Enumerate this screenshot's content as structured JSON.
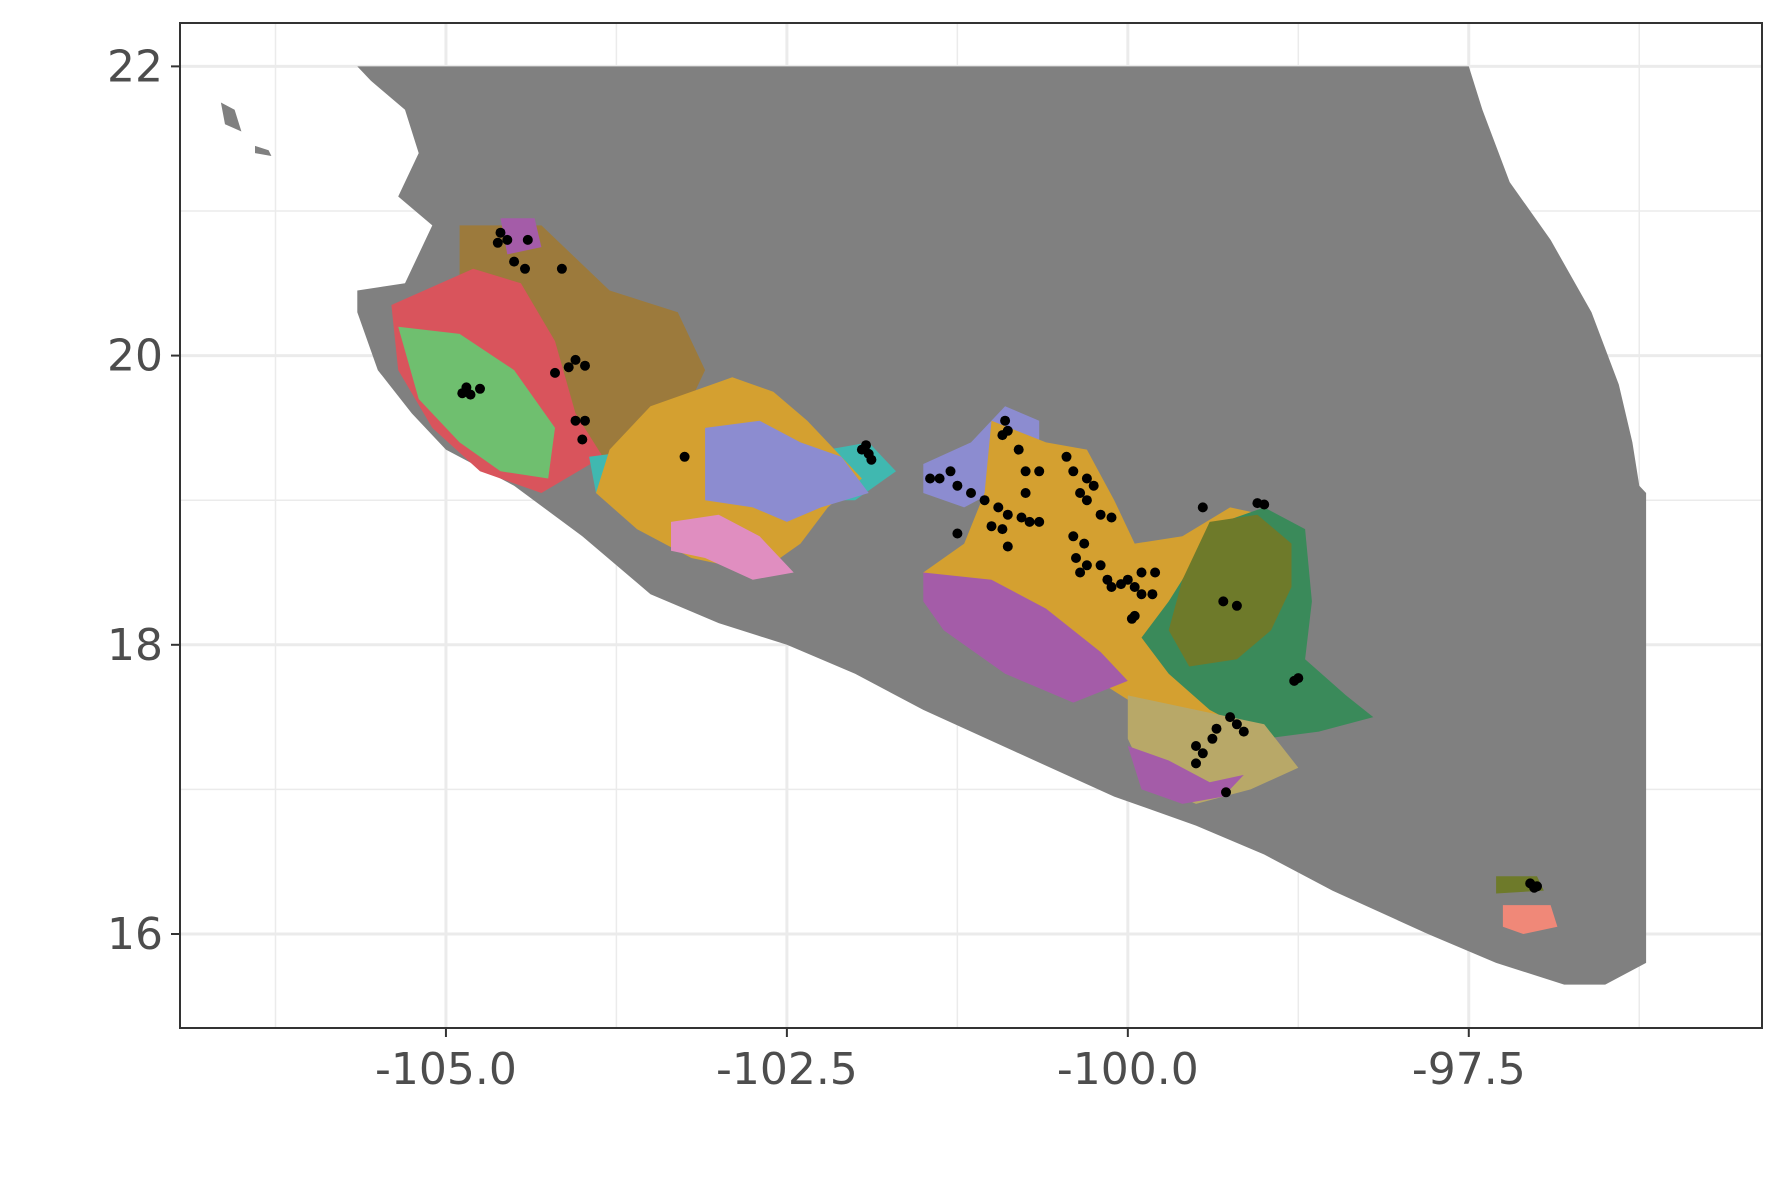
{
  "chart_data": {
    "type": "map",
    "title": "",
    "xlabel": "",
    "ylabel": "",
    "xlim": [
      -106.95,
      -95.35
    ],
    "ylim": [
      15.35,
      22.3
    ],
    "grid": true,
    "x_ticks": [
      {
        "value": -105.0,
        "label": "-105.0"
      },
      {
        "value": -102.5,
        "label": "-102.5"
      },
      {
        "value": -100.0,
        "label": "-100.0"
      },
      {
        "value": -97.5,
        "label": "-97.5"
      }
    ],
    "y_ticks": [
      {
        "value": 16,
        "label": "16"
      },
      {
        "value": 18,
        "label": "18"
      },
      {
        "value": 20,
        "label": "20"
      },
      {
        "value": 22,
        "label": "22"
      }
    ],
    "x_minor": [
      -106.25,
      -103.75,
      -101.25,
      -98.75,
      -96.25
    ],
    "y_minor": [
      17,
      19,
      21
    ],
    "colors": {
      "land": "#808080",
      "points": "#000000",
      "panel_border": "#333333",
      "grid": "#ebebeb",
      "regions": [
        "#d9545c",
        "#6fbf6f",
        "#9c7a3c",
        "#d4a030",
        "#8c8cd0",
        "#e08ec0",
        "#a45ca8",
        "#3a8a5a",
        "#6e7a2a",
        "#b8a868",
        "#f08878",
        "#40b8b0"
      ]
    },
    "land_polygon": [
      [
        -105.65,
        22.0
      ],
      [
        -97.5,
        22.0
      ],
      [
        -97.4,
        21.7
      ],
      [
        -97.2,
        21.2
      ],
      [
        -96.9,
        20.8
      ],
      [
        -96.6,
        20.3
      ],
      [
        -96.4,
        19.8
      ],
      [
        -96.3,
        19.4
      ],
      [
        -96.25,
        19.1
      ],
      [
        -96.2,
        19.05
      ],
      [
        -96.2,
        15.8
      ],
      [
        -96.5,
        15.65
      ],
      [
        -96.8,
        15.65
      ],
      [
        -97.3,
        15.8
      ],
      [
        -97.8,
        16.0
      ],
      [
        -98.5,
        16.3
      ],
      [
        -99.0,
        16.55
      ],
      [
        -99.5,
        16.75
      ],
      [
        -100.1,
        16.95
      ],
      [
        -100.8,
        17.25
      ],
      [
        -101.5,
        17.55
      ],
      [
        -102.0,
        17.8
      ],
      [
        -102.5,
        18.0
      ],
      [
        -103.0,
        18.15
      ],
      [
        -103.5,
        18.35
      ],
      [
        -104.0,
        18.75
      ],
      [
        -104.5,
        19.1
      ],
      [
        -105.0,
        19.35
      ],
      [
        -105.25,
        19.6
      ],
      [
        -105.5,
        19.9
      ],
      [
        -105.65,
        20.3
      ],
      [
        -105.65,
        20.45
      ],
      [
        -105.3,
        20.5
      ],
      [
        -105.1,
        20.9
      ],
      [
        -105.35,
        21.1
      ],
      [
        -105.2,
        21.4
      ],
      [
        -105.3,
        21.7
      ],
      [
        -105.55,
        21.9
      ]
    ],
    "islands": [
      [
        [
          -106.65,
          21.75
        ],
        [
          -106.55,
          21.7
        ],
        [
          -106.5,
          21.55
        ],
        [
          -106.62,
          21.6
        ]
      ],
      [
        [
          -106.4,
          21.45
        ],
        [
          -106.3,
          21.42
        ],
        [
          -106.28,
          21.38
        ],
        [
          -106.4,
          21.4
        ]
      ]
    ],
    "regions": [
      {
        "color": "#9c7a3c",
        "poly": [
          [
            -104.9,
            20.9
          ],
          [
            -104.3,
            20.9
          ],
          [
            -103.8,
            20.45
          ],
          [
            -103.3,
            20.3
          ],
          [
            -103.1,
            19.9
          ],
          [
            -103.3,
            19.5
          ],
          [
            -103.7,
            19.2
          ],
          [
            -104.1,
            19.35
          ],
          [
            -104.3,
            19.9
          ],
          [
            -104.7,
            20.2
          ],
          [
            -104.9,
            20.5
          ]
        ]
      },
      {
        "color": "#d9545c",
        "poly": [
          [
            -105.4,
            20.35
          ],
          [
            -104.8,
            20.6
          ],
          [
            -104.45,
            20.5
          ],
          [
            -104.2,
            20.1
          ],
          [
            -104.05,
            19.6
          ],
          [
            -103.85,
            19.3
          ],
          [
            -104.3,
            19.05
          ],
          [
            -104.75,
            19.2
          ],
          [
            -105.1,
            19.5
          ],
          [
            -105.35,
            19.9
          ]
        ]
      },
      {
        "color": "#6fbf6f",
        "poly": [
          [
            -105.35,
            20.2
          ],
          [
            -104.9,
            20.15
          ],
          [
            -104.5,
            19.9
          ],
          [
            -104.2,
            19.5
          ],
          [
            -104.25,
            19.15
          ],
          [
            -104.6,
            19.2
          ],
          [
            -104.9,
            19.4
          ],
          [
            -105.2,
            19.7
          ]
        ]
      },
      {
        "color": "#a45ca8",
        "poly": [
          [
            -104.6,
            20.95
          ],
          [
            -104.35,
            20.95
          ],
          [
            -104.3,
            20.75
          ],
          [
            -104.55,
            20.7
          ]
        ]
      },
      {
        "color": "#40b8b0",
        "poly": [
          [
            -103.95,
            19.3
          ],
          [
            -103.55,
            19.35
          ],
          [
            -103.2,
            19.2
          ],
          [
            -102.9,
            19.15
          ],
          [
            -102.7,
            19.25
          ],
          [
            -102.2,
            19.35
          ],
          [
            -101.9,
            19.4
          ],
          [
            -101.7,
            19.2
          ],
          [
            -102.0,
            19.0
          ],
          [
            -102.3,
            19.0
          ],
          [
            -102.7,
            18.95
          ],
          [
            -103.1,
            18.9
          ],
          [
            -103.5,
            19.0
          ],
          [
            -103.9,
            19.05
          ]
        ]
      },
      {
        "color": "#d4a030",
        "poly": [
          [
            -103.5,
            19.65
          ],
          [
            -102.9,
            19.85
          ],
          [
            -102.6,
            19.75
          ],
          [
            -102.35,
            19.55
          ],
          [
            -102.1,
            19.3
          ],
          [
            -101.95,
            19.15
          ],
          [
            -102.2,
            18.95
          ],
          [
            -102.4,
            18.7
          ],
          [
            -102.7,
            18.5
          ],
          [
            -103.2,
            18.6
          ],
          [
            -103.6,
            18.8
          ],
          [
            -103.9,
            19.05
          ],
          [
            -103.8,
            19.35
          ]
        ]
      },
      {
        "color": "#8c8cd0",
        "poly": [
          [
            -103.1,
            19.5
          ],
          [
            -102.7,
            19.55
          ],
          [
            -102.4,
            19.4
          ],
          [
            -102.1,
            19.3
          ],
          [
            -101.9,
            19.05
          ],
          [
            -102.25,
            18.95
          ],
          [
            -102.5,
            18.85
          ],
          [
            -102.75,
            18.95
          ],
          [
            -103.1,
            19.0
          ]
        ]
      },
      {
        "color": "#e08ec0",
        "poly": [
          [
            -103.35,
            18.85
          ],
          [
            -103.0,
            18.9
          ],
          [
            -102.7,
            18.75
          ],
          [
            -102.45,
            18.5
          ],
          [
            -102.75,
            18.45
          ],
          [
            -103.1,
            18.6
          ],
          [
            -103.35,
            18.65
          ]
        ]
      },
      {
        "color": "#8c8cd0",
        "poly": [
          [
            -101.5,
            19.25
          ],
          [
            -101.15,
            19.4
          ],
          [
            -100.9,
            19.65
          ],
          [
            -100.65,
            19.55
          ],
          [
            -100.65,
            19.3
          ],
          [
            -100.9,
            19.1
          ],
          [
            -101.2,
            18.95
          ],
          [
            -101.5,
            19.05
          ]
        ]
      },
      {
        "color": "#d4a030",
        "poly": [
          [
            -101.0,
            19.55
          ],
          [
            -100.6,
            19.4
          ],
          [
            -100.3,
            19.35
          ],
          [
            -100.1,
            19.0
          ],
          [
            -99.95,
            18.7
          ],
          [
            -99.6,
            18.75
          ],
          [
            -99.25,
            18.95
          ],
          [
            -99.0,
            18.9
          ],
          [
            -98.85,
            18.5
          ],
          [
            -99.0,
            18.0
          ],
          [
            -99.2,
            17.5
          ],
          [
            -99.8,
            17.5
          ],
          [
            -100.3,
            17.8
          ],
          [
            -100.9,
            18.1
          ],
          [
            -101.4,
            18.25
          ],
          [
            -101.5,
            18.5
          ],
          [
            -101.2,
            18.7
          ],
          [
            -101.05,
            19.05
          ]
        ]
      },
      {
        "color": "#a45ca8",
        "poly": [
          [
            -101.5,
            18.5
          ],
          [
            -101.0,
            18.45
          ],
          [
            -100.6,
            18.25
          ],
          [
            -100.2,
            17.95
          ],
          [
            -100.0,
            17.75
          ],
          [
            -100.4,
            17.6
          ],
          [
            -100.9,
            17.8
          ],
          [
            -101.35,
            18.1
          ],
          [
            -101.5,
            18.3
          ]
        ]
      },
      {
        "color": "#3a8a5a",
        "poly": [
          [
            -99.3,
            18.85
          ],
          [
            -99.0,
            18.95
          ],
          [
            -98.7,
            18.8
          ],
          [
            -98.65,
            18.3
          ],
          [
            -98.7,
            17.9
          ],
          [
            -98.4,
            17.65
          ],
          [
            -98.2,
            17.5
          ],
          [
            -98.6,
            17.4
          ],
          [
            -99.0,
            17.35
          ],
          [
            -99.4,
            17.55
          ],
          [
            -99.7,
            17.8
          ],
          [
            -99.9,
            18.05
          ],
          [
            -99.7,
            18.3
          ],
          [
            -99.5,
            18.6
          ]
        ]
      },
      {
        "color": "#6e7a2a",
        "poly": [
          [
            -99.4,
            18.85
          ],
          [
            -99.05,
            18.9
          ],
          [
            -98.8,
            18.7
          ],
          [
            -98.8,
            18.4
          ],
          [
            -98.95,
            18.1
          ],
          [
            -99.2,
            17.9
          ],
          [
            -99.55,
            17.85
          ],
          [
            -99.7,
            18.1
          ],
          [
            -99.6,
            18.45
          ]
        ]
      },
      {
        "color": "#b8a868",
        "poly": [
          [
            -100.0,
            17.65
          ],
          [
            -99.5,
            17.55
          ],
          [
            -99.0,
            17.45
          ],
          [
            -98.75,
            17.15
          ],
          [
            -99.1,
            17.0
          ],
          [
            -99.5,
            16.9
          ],
          [
            -99.85,
            17.05
          ],
          [
            -100.0,
            17.35
          ]
        ]
      },
      {
        "color": "#a45ca8",
        "poly": [
          [
            -100.0,
            17.3
          ],
          [
            -99.7,
            17.2
          ],
          [
            -99.4,
            17.05
          ],
          [
            -99.15,
            17.1
          ],
          [
            -99.3,
            16.95
          ],
          [
            -99.6,
            16.9
          ],
          [
            -99.9,
            17.0
          ]
        ]
      },
      {
        "color": "#6e7a2a",
        "poly": [
          [
            -97.3,
            16.4
          ],
          [
            -97.0,
            16.4
          ],
          [
            -96.95,
            16.3
          ],
          [
            -97.3,
            16.28
          ]
        ]
      },
      {
        "color": "#f08878",
        "poly": [
          [
            -97.25,
            16.2
          ],
          [
            -96.9,
            16.2
          ],
          [
            -96.85,
            16.05
          ],
          [
            -97.1,
            16.0
          ],
          [
            -97.25,
            16.05
          ]
        ]
      }
    ],
    "points": [
      [
        -104.6,
        20.85
      ],
      [
        -104.55,
        20.8
      ],
      [
        -104.62,
        20.78
      ],
      [
        -104.4,
        20.8
      ],
      [
        -104.5,
        20.65
      ],
      [
        -104.42,
        20.6
      ],
      [
        -104.15,
        20.6
      ],
      [
        -104.05,
        19.97
      ],
      [
        -103.98,
        19.93
      ],
      [
        -104.2,
        19.88
      ],
      [
        -104.1,
        19.92
      ],
      [
        -104.05,
        19.55
      ],
      [
        -103.98,
        19.55
      ],
      [
        -104.0,
        19.42
      ],
      [
        -104.85,
        19.78
      ],
      [
        -104.75,
        19.77
      ],
      [
        -104.82,
        19.73
      ],
      [
        -104.88,
        19.74
      ],
      [
        -103.25,
        19.3
      ],
      [
        -101.95,
        19.35
      ],
      [
        -101.9,
        19.32
      ],
      [
        -101.88,
        19.28
      ],
      [
        -101.92,
        19.38
      ],
      [
        -101.45,
        19.15
      ],
      [
        -101.38,
        19.15
      ],
      [
        -101.3,
        19.2
      ],
      [
        -101.25,
        19.1
      ],
      [
        -101.15,
        19.05
      ],
      [
        -101.05,
        19.0
      ],
      [
        -100.9,
        19.55
      ],
      [
        -100.88,
        19.48
      ],
      [
        -100.92,
        19.45
      ],
      [
        -100.8,
        19.35
      ],
      [
        -100.75,
        19.2
      ],
      [
        -100.65,
        19.2
      ],
      [
        -100.75,
        19.05
      ],
      [
        -100.95,
        18.95
      ],
      [
        -100.88,
        18.9
      ],
      [
        -100.78,
        18.88
      ],
      [
        -100.72,
        18.85
      ],
      [
        -101.0,
        18.82
      ],
      [
        -100.92,
        18.8
      ],
      [
        -100.65,
        18.85
      ],
      [
        -101.25,
        18.77
      ],
      [
        -100.88,
        18.68
      ],
      [
        -100.45,
        19.3
      ],
      [
        -100.4,
        19.2
      ],
      [
        -100.3,
        19.15
      ],
      [
        -100.25,
        19.1
      ],
      [
        -100.35,
        19.05
      ],
      [
        -100.3,
        19.0
      ],
      [
        -100.2,
        18.9
      ],
      [
        -100.12,
        18.88
      ],
      [
        -100.4,
        18.75
      ],
      [
        -100.32,
        18.7
      ],
      [
        -100.38,
        18.6
      ],
      [
        -100.3,
        18.55
      ],
      [
        -100.2,
        18.55
      ],
      [
        -100.35,
        18.5
      ],
      [
        -100.15,
        18.45
      ],
      [
        -100.12,
        18.4
      ],
      [
        -100.05,
        18.42
      ],
      [
        -100.0,
        18.45
      ],
      [
        -99.95,
        18.4
      ],
      [
        -99.9,
        18.5
      ],
      [
        -99.8,
        18.5
      ],
      [
        -99.9,
        18.35
      ],
      [
        -99.82,
        18.35
      ],
      [
        -99.95,
        18.2
      ],
      [
        -99.97,
        18.18
      ],
      [
        -99.45,
        18.95
      ],
      [
        -99.05,
        18.98
      ],
      [
        -99.0,
        18.97
      ],
      [
        -99.3,
        18.3
      ],
      [
        -99.2,
        18.27
      ],
      [
        -98.75,
        17.77
      ],
      [
        -98.78,
        17.75
      ],
      [
        -99.25,
        17.5
      ],
      [
        -99.2,
        17.45
      ],
      [
        -99.35,
        17.42
      ],
      [
        -99.38,
        17.35
      ],
      [
        -99.5,
        17.3
      ],
      [
        -99.45,
        17.25
      ],
      [
        -99.5,
        17.18
      ],
      [
        -99.15,
        17.4
      ],
      [
        -99.28,
        16.98
      ],
      [
        -97.05,
        16.35
      ],
      [
        -97.02,
        16.32
      ],
      [
        -97.0,
        16.33
      ]
    ]
  }
}
